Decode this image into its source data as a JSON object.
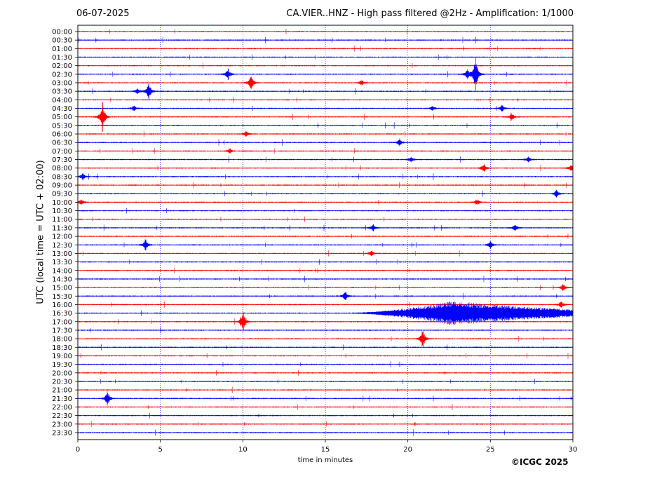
{
  "header": {
    "date": "06-07-2025",
    "title": "CA.VIER..HNZ - High pass filtered @2Hz - Amplification: 1/1000"
  },
  "footer": {
    "copyright": "©ICGC 2025"
  },
  "colors": {
    "trace_a": "#ff0000",
    "trace_b": "#0000ff",
    "grid": "#0000ff"
  },
  "chart_data": {
    "type": "line",
    "title": "CA.VIER..HNZ - High pass filtered @2Hz - Amplification: 1/1000",
    "xlabel": "time in minutes",
    "ylabel": "UTC (local time = UTC + 02:00)",
    "xlim": [
      0,
      30
    ],
    "x_ticks": [
      0,
      5,
      10,
      15,
      20,
      25,
      30
    ],
    "grid": "vertical dotted at 5-minute intervals",
    "row_labels": [
      "00:00",
      "00:30",
      "01:00",
      "01:30",
      "02:00",
      "02:30",
      "03:00",
      "03:30",
      "04:00",
      "04:30",
      "05:00",
      "05:30",
      "06:00",
      "06:30",
      "07:00",
      "07:30",
      "08:00",
      "08:30",
      "09:00",
      "09:30",
      "10:00",
      "10:30",
      "11:00",
      "11:30",
      "12:00",
      "12:30",
      "13:00",
      "13:30",
      "14:00",
      "14:30",
      "15:00",
      "15:30",
      "16:00",
      "16:30",
      "17:00",
      "17:30",
      "18:00",
      "18:30",
      "19:00",
      "19:30",
      "20:00",
      "20:30",
      "21:00",
      "21:30",
      "22:00",
      "22:30",
      "23:00",
      "23:30"
    ],
    "row_color_pattern": [
      "red",
      "blue"
    ],
    "events": [
      {
        "row": "02:30",
        "minute": 9.1,
        "amplitude": 0.35
      },
      {
        "row": "02:30",
        "minute": 23.6,
        "amplitude": 0.3
      },
      {
        "row": "02:30",
        "minute": 24.1,
        "amplitude": 1.0
      },
      {
        "row": "03:00",
        "minute": 10.5,
        "amplitude": 0.45
      },
      {
        "row": "03:00",
        "minute": 17.2,
        "amplitude": 0.15
      },
      {
        "row": "03:30",
        "minute": 3.6,
        "amplitude": 0.15
      },
      {
        "row": "03:30",
        "minute": 4.3,
        "amplitude": 0.5
      },
      {
        "row": "04:30",
        "minute": 3.4,
        "amplitude": 0.15
      },
      {
        "row": "04:30",
        "minute": 21.5,
        "amplitude": 0.15
      },
      {
        "row": "04:30",
        "minute": 25.7,
        "amplitude": 0.2
      },
      {
        "row": "05:00",
        "minute": 1.5,
        "amplitude": 0.9
      },
      {
        "row": "05:00",
        "minute": 26.3,
        "amplitude": 0.2
      },
      {
        "row": "06:00",
        "minute": 10.2,
        "amplitude": 0.15
      },
      {
        "row": "06:30",
        "minute": 19.5,
        "amplitude": 0.2
      },
      {
        "row": "07:00",
        "minute": 9.2,
        "amplitude": 0.15
      },
      {
        "row": "07:30",
        "minute": 20.2,
        "amplitude": 0.15
      },
      {
        "row": "07:30",
        "minute": 27.3,
        "amplitude": 0.15
      },
      {
        "row": "08:00",
        "minute": 24.6,
        "amplitude": 0.25
      },
      {
        "row": "08:00",
        "minute": 29.9,
        "amplitude": 0.2
      },
      {
        "row": "08:30",
        "minute": 0.3,
        "amplitude": 0.2
      },
      {
        "row": "09:30",
        "minute": 29.0,
        "amplitude": 0.2
      },
      {
        "row": "10:00",
        "minute": 0.2,
        "amplitude": 0.2
      },
      {
        "row": "10:00",
        "minute": 24.2,
        "amplitude": 0.15
      },
      {
        "row": "11:30",
        "minute": 17.9,
        "amplitude": 0.2
      },
      {
        "row": "11:30",
        "minute": 26.5,
        "amplitude": 0.2
      },
      {
        "row": "12:30",
        "minute": 4.1,
        "amplitude": 0.35
      },
      {
        "row": "12:30",
        "minute": 25.0,
        "amplitude": 0.2
      },
      {
        "row": "13:00",
        "minute": 17.8,
        "amplitude": 0.15
      },
      {
        "row": "15:00",
        "minute": 29.4,
        "amplitude": 0.2
      },
      {
        "row": "15:30",
        "minute": 16.2,
        "amplitude": 0.3
      },
      {
        "row": "16:00",
        "minute": 29.3,
        "amplitude": 0.2
      },
      {
        "row": "17:00",
        "minute": 10.0,
        "amplitude": 0.6
      },
      {
        "row": "18:00",
        "minute": 20.9,
        "amplitude": 0.55
      },
      {
        "row": "21:30",
        "minute": 1.8,
        "amplitude": 0.4
      }
    ],
    "emergent_signal": {
      "row": "16:30",
      "start_minute": 16.5,
      "peak_minute": 22.7,
      "end_minute": 30.0,
      "peak_amplitude": 0.75
    }
  }
}
